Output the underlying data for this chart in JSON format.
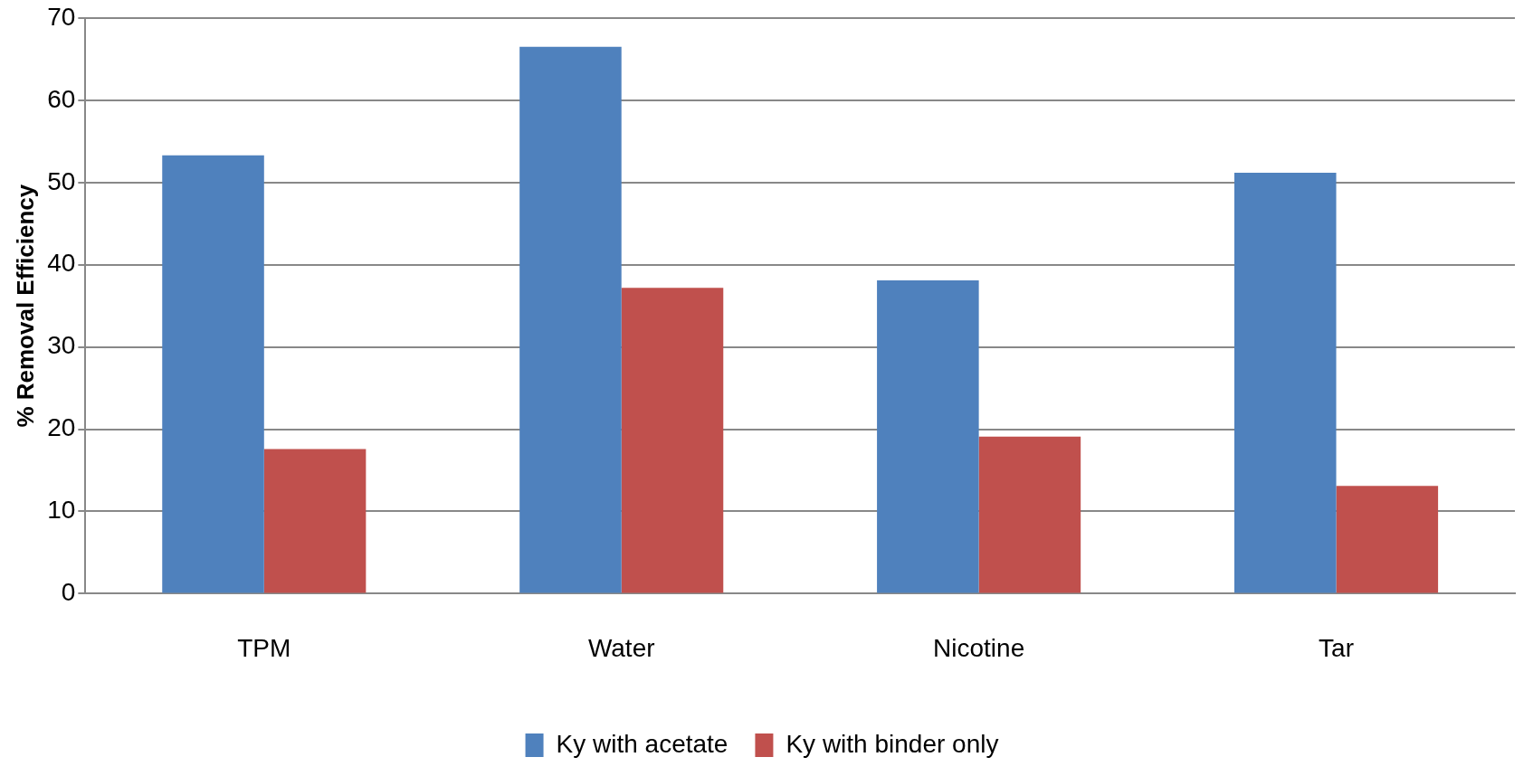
{
  "chart_data": {
    "type": "bar",
    "ylabel": "% Removal Efficiency",
    "categories": [
      "TPM",
      "Water",
      "Nicotine",
      "Tar"
    ],
    "series": [
      {
        "name": "Ky with acetate",
        "color": "#4f81bd",
        "values": [
          53.3,
          66.5,
          38.1,
          51.2
        ]
      },
      {
        "name": "Ky with binder only",
        "color": "#c0504d",
        "values": [
          17.6,
          37.2,
          19.1,
          13.1
        ]
      }
    ],
    "ylim": [
      0,
      70
    ],
    "yticks": [
      0,
      10,
      20,
      30,
      40,
      50,
      60,
      70
    ],
    "grid": "y",
    "legend": "bottom"
  }
}
